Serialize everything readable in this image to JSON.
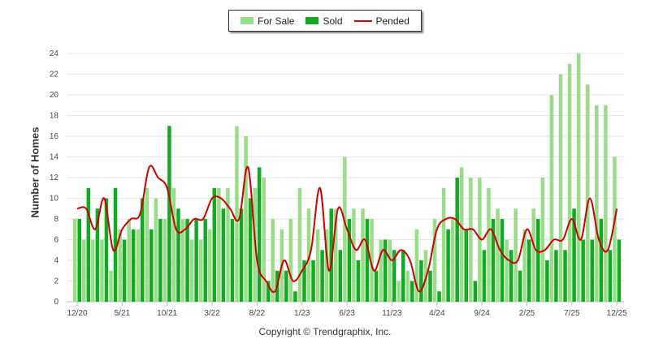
{
  "chart_data": {
    "type": "bar",
    "title": "",
    "xlabel": "",
    "ylabel": "Number of Homes",
    "ylim": [
      0,
      24
    ],
    "yticks": [
      0,
      2,
      4,
      6,
      8,
      10,
      12,
      14,
      16,
      18,
      20,
      22,
      24
    ],
    "grid": true,
    "legend_position": "top-center",
    "xtick_labels": [
      "12/20",
      "5/21",
      "10/21",
      "3/22",
      "8/22",
      "1/23",
      "6/23",
      "11/23",
      "4/24",
      "9/24",
      "2/25",
      "7/25",
      "12/25"
    ],
    "categories": [
      "12/20",
      "1/21",
      "2/21",
      "3/21",
      "4/21",
      "5/21",
      "6/21",
      "7/21",
      "8/21",
      "9/21",
      "10/21",
      "11/21",
      "12/21",
      "1/22",
      "2/22",
      "3/22",
      "4/22",
      "5/22",
      "6/22",
      "7/22",
      "8/22",
      "9/22",
      "10/22",
      "11/22",
      "12/22",
      "1/23",
      "2/23",
      "3/23",
      "4/23",
      "5/23",
      "6/23",
      "7/23",
      "8/23",
      "9/23",
      "10/23",
      "11/23",
      "12/23",
      "1/24",
      "2/24",
      "3/24",
      "4/24",
      "5/24",
      "6/24",
      "7/24",
      "8/24",
      "9/24",
      "10/24",
      "11/24",
      "12/24",
      "1/25",
      "2/25",
      "3/25",
      "4/25",
      "5/25",
      "6/25",
      "7/25",
      "8/25",
      "9/25",
      "10/25",
      "11/25",
      "12/25"
    ],
    "series": [
      {
        "name": "For Sale",
        "type": "bar",
        "color": "#99dd88",
        "values": [
          8,
          6,
          6,
          6,
          3,
          7,
          8,
          7,
          11,
          10,
          8,
          11,
          8,
          6,
          6,
          7,
          11,
          11,
          17,
          16,
          11,
          12,
          8,
          7,
          8,
          11,
          9,
          7,
          7,
          9,
          14,
          9,
          9,
          8,
          6,
          6,
          2,
          3,
          7,
          5,
          8,
          11,
          8,
          13,
          12,
          12,
          11,
          9,
          6,
          9,
          7,
          9,
          12,
          20,
          22,
          23,
          24,
          21,
          19,
          19,
          14
        ]
      },
      {
        "name": "Sold",
        "type": "bar",
        "color": "#11aa22",
        "values": [
          8,
          11,
          9,
          10,
          11,
          6,
          7,
          10,
          7,
          8,
          17,
          9,
          8,
          8,
          8,
          11,
          9,
          8,
          9,
          10,
          13,
          2,
          3,
          3,
          1,
          4,
          4,
          5,
          9,
          5,
          8,
          4,
          8,
          3,
          6,
          5,
          5,
          2,
          4,
          3,
          1,
          7,
          12,
          7,
          2,
          5,
          8,
          8,
          5,
          3,
          6,
          8,
          4,
          5,
          5,
          9,
          6,
          6,
          8,
          5,
          6
        ]
      },
      {
        "name": "Pended",
        "type": "line",
        "color": "#cc0000",
        "values": [
          9,
          9,
          7,
          10,
          5,
          7,
          8,
          8.5,
          13,
          12,
          11,
          7,
          7,
          8,
          8,
          10,
          10,
          9,
          8,
          13,
          4,
          2,
          1,
          4,
          2,
          3,
          5,
          11,
          3,
          9,
          7,
          5,
          6,
          3,
          5,
          4,
          5,
          4,
          1,
          3,
          7,
          8,
          8,
          7,
          7,
          6,
          7,
          5,
          4,
          4,
          7,
          5,
          5,
          6,
          6,
          8,
          6,
          10,
          6,
          5,
          9
        ]
      }
    ]
  },
  "legend": {
    "for_sale": "For Sale",
    "sold": "Sold",
    "pended": "Pended"
  },
  "footer": {
    "copyright": "Copyright © Trendgraphix, Inc."
  }
}
